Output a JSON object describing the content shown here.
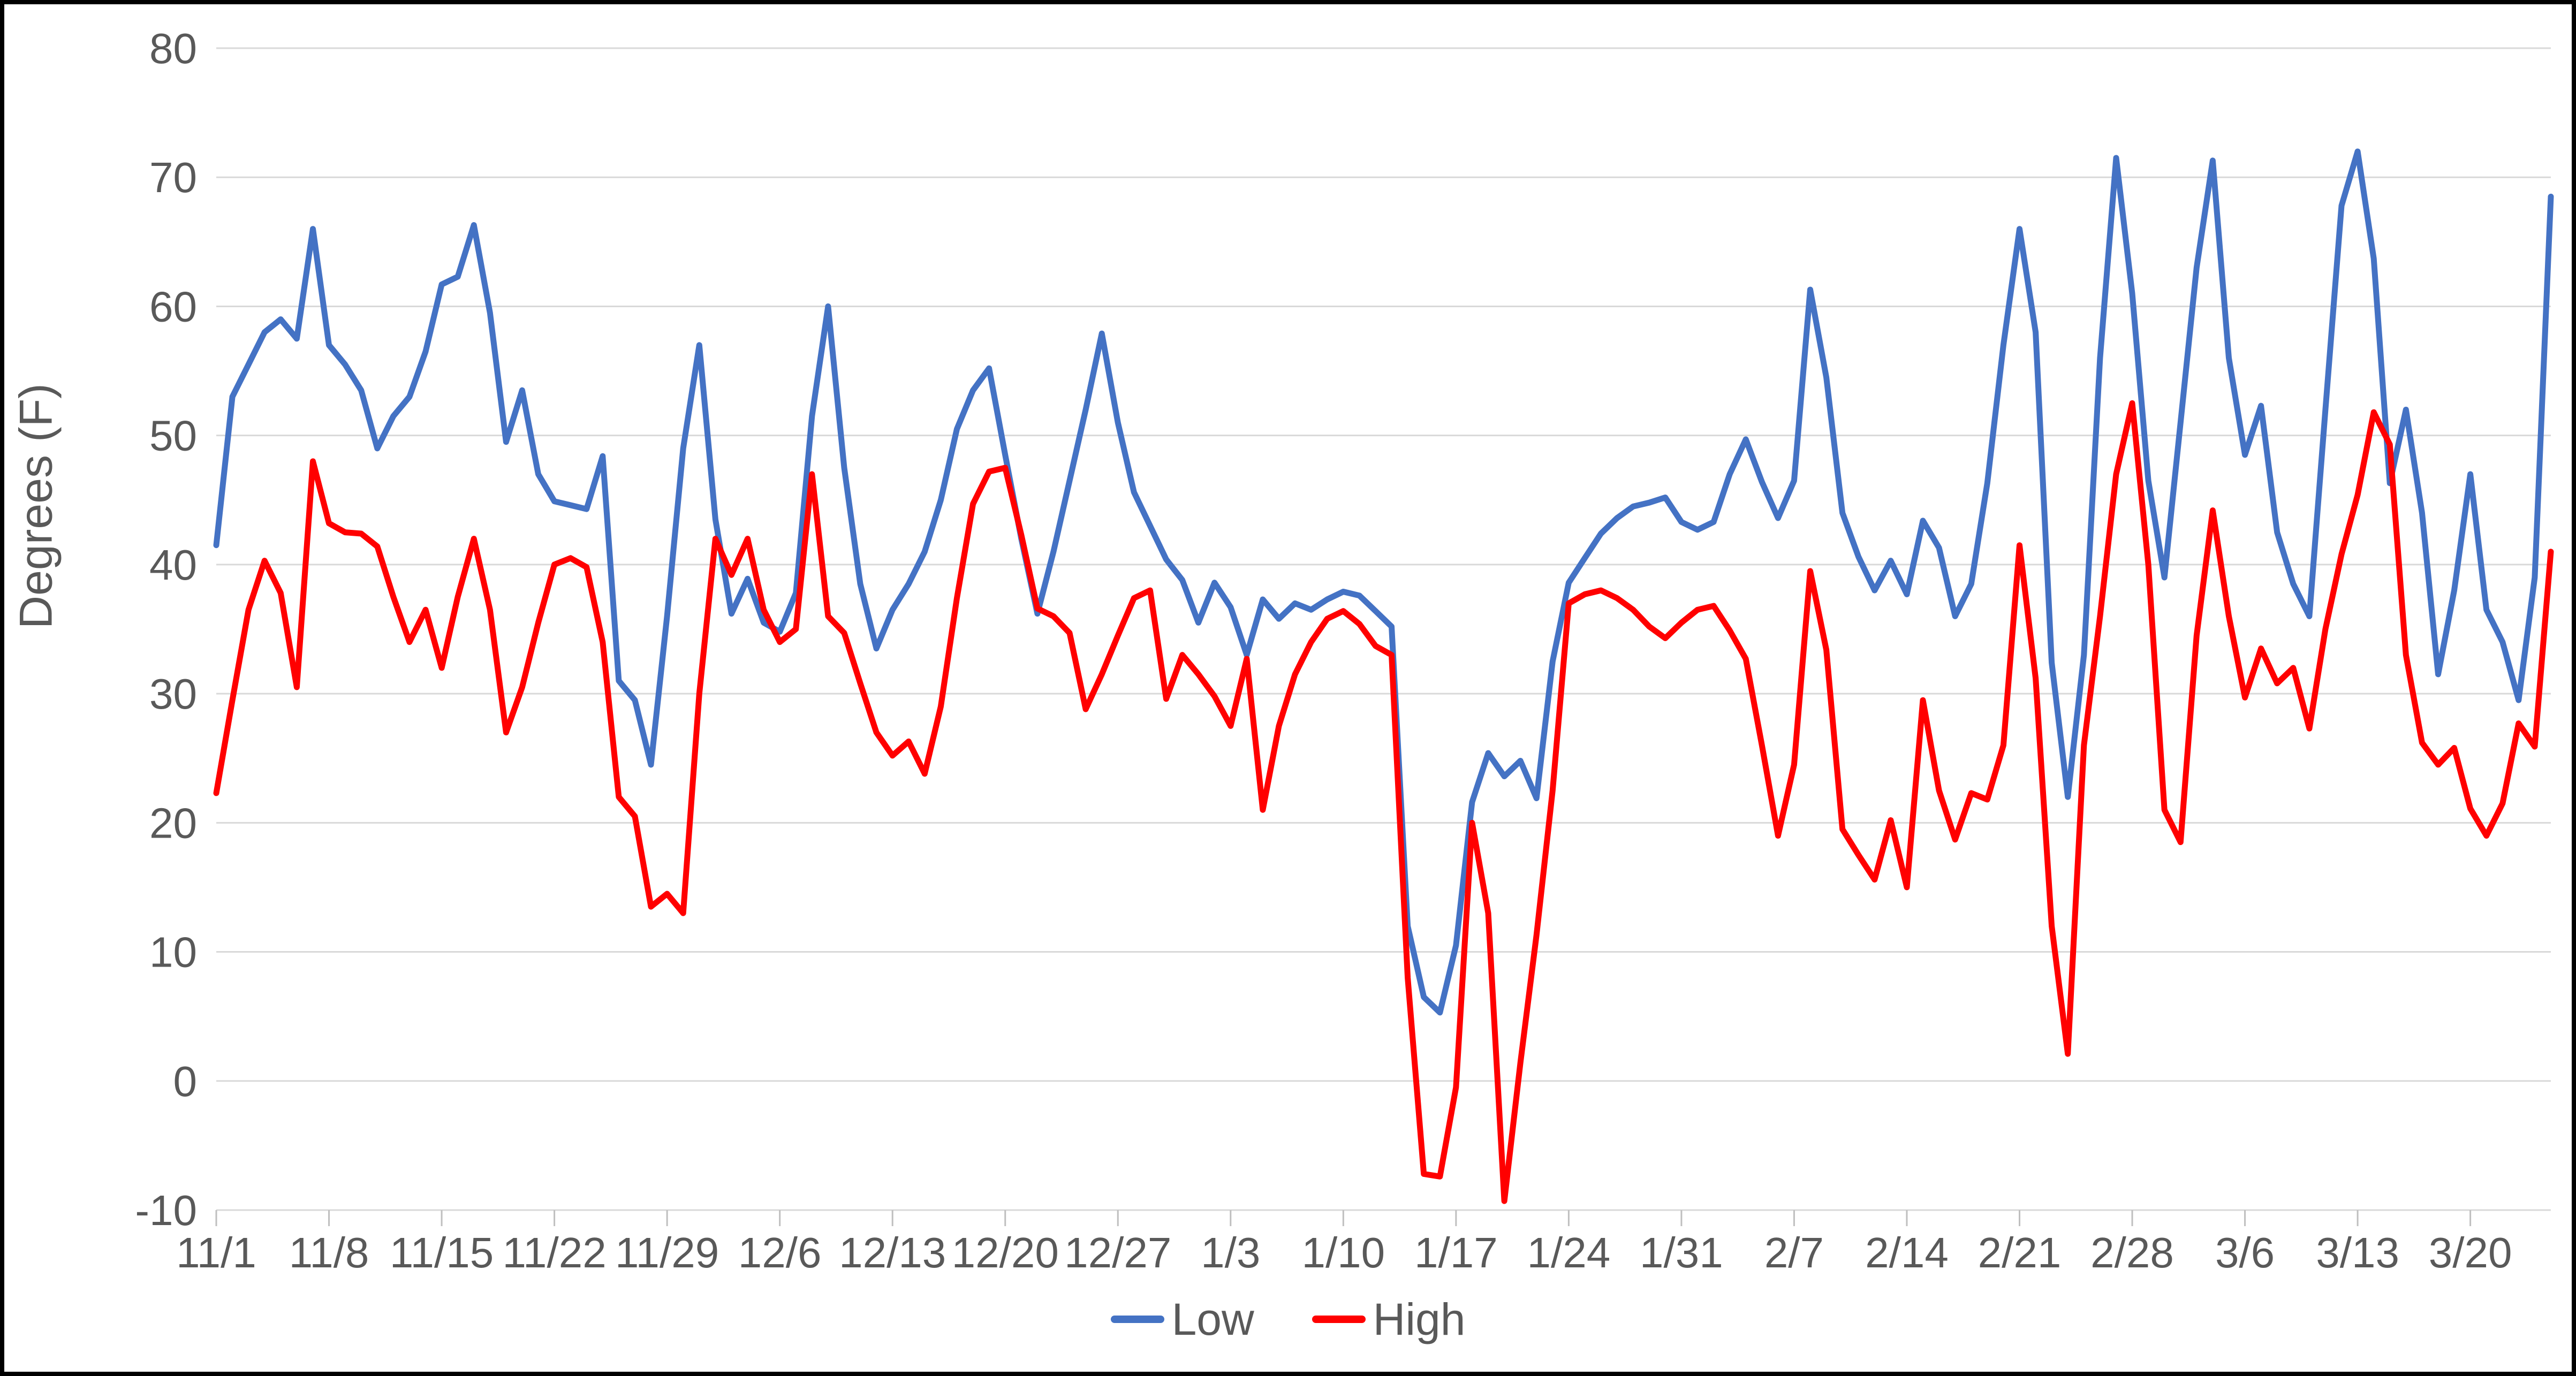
{
  "axis": {
    "y_title": "Degrees (F)"
  },
  "legend": {
    "low_label": "Low",
    "high_label": "High"
  },
  "colors": {
    "low": "#4472C4",
    "high": "#FF0000",
    "grid": "#D9D9D9",
    "tick": "#BFBFBF",
    "text": "#595959",
    "border": "#000000",
    "background": "#FFFFFF"
  },
  "chart_data": {
    "type": "line",
    "title": "",
    "xlabel": "",
    "ylabel": "Degrees (F)",
    "ylim": [
      -10,
      80
    ],
    "yticks": [
      80,
      70,
      60,
      50,
      40,
      30,
      20,
      10,
      0,
      -10
    ],
    "grid": "horizontal",
    "legend_position": "bottom-center",
    "xtick_indices": [
      0,
      7,
      14,
      21,
      28,
      35,
      42,
      49,
      56,
      63,
      70,
      77,
      84,
      91,
      98,
      105,
      112,
      119,
      126,
      133,
      140
    ],
    "xtick_labels": [
      "11/1",
      "11/8",
      "11/15",
      "11/22",
      "11/29",
      "12/6",
      "12/13",
      "12/20",
      "12/27",
      "1/3",
      "1/10",
      "1/17",
      "1/24",
      "1/31",
      "2/7",
      "2/14",
      "2/21",
      "2/28",
      "3/6",
      "3/13",
      "3/20"
    ],
    "x": [
      "11/1",
      "11/2",
      "11/3",
      "11/4",
      "11/5",
      "11/6",
      "11/7",
      "11/8",
      "11/9",
      "11/10",
      "11/11",
      "11/12",
      "11/13",
      "11/14",
      "11/15",
      "11/16",
      "11/17",
      "11/18",
      "11/19",
      "11/20",
      "11/21",
      "11/22",
      "11/23",
      "11/24",
      "11/25",
      "11/26",
      "11/27",
      "11/28",
      "11/29",
      "11/30",
      "12/1",
      "12/2",
      "12/3",
      "12/4",
      "12/5",
      "12/6",
      "12/7",
      "12/8",
      "12/9",
      "12/10",
      "12/11",
      "12/12",
      "12/13",
      "12/14",
      "12/15",
      "12/16",
      "12/17",
      "12/18",
      "12/19",
      "12/20",
      "12/21",
      "12/22",
      "12/23",
      "12/24",
      "12/25",
      "12/26",
      "12/27",
      "12/28",
      "12/29",
      "12/30",
      "12/31",
      "1/1",
      "1/2",
      "1/3",
      "1/4",
      "1/5",
      "1/6",
      "1/7",
      "1/8",
      "1/9",
      "1/10",
      "1/11",
      "1/12",
      "1/13",
      "1/14",
      "1/15",
      "1/16",
      "1/17",
      "1/18",
      "1/19",
      "1/20",
      "1/21",
      "1/22",
      "1/23",
      "1/24",
      "1/25",
      "1/26",
      "1/27",
      "1/28",
      "1/29",
      "1/30",
      "1/31",
      "2/1",
      "2/2",
      "2/3",
      "2/4",
      "2/5",
      "2/6",
      "2/7",
      "2/8",
      "2/9",
      "2/10",
      "2/11",
      "2/12",
      "2/13",
      "2/14",
      "2/15",
      "2/16",
      "2/17",
      "2/18",
      "2/19",
      "2/20",
      "2/21",
      "2/22",
      "2/23",
      "2/24",
      "2/25",
      "2/26",
      "2/27",
      "2/28",
      "2/29",
      "3/1",
      "3/2",
      "3/3",
      "3/4",
      "3/5",
      "3/6",
      "3/7",
      "3/8",
      "3/9",
      "3/10",
      "3/11",
      "3/12",
      "3/13",
      "3/14",
      "3/15",
      "3/16",
      "3/17",
      "3/18",
      "3/19",
      "3/20",
      "3/21",
      "3/22",
      "3/23",
      "3/24",
      "3/25"
    ],
    "series": [
      {
        "name": "Low",
        "color": "#4472C4",
        "values": [
          41.5,
          53,
          55.5,
          58,
          59,
          57.5,
          66,
          57,
          55.5,
          53.5,
          49,
          51.5,
          53,
          56.5,
          61.7,
          62.3,
          66.3,
          59.5,
          49.5,
          53.5,
          47,
          44.9,
          44.6,
          44.3,
          48.4,
          31,
          29.5,
          24.5,
          36,
          49,
          57,
          43.5,
          36.2,
          38.9,
          35.5,
          34.8,
          37.8,
          51.5,
          60,
          47.5,
          38.5,
          33.5,
          36.5,
          38.5,
          41,
          45,
          50.5,
          53.5,
          55.2,
          48.5,
          42,
          36.2,
          41,
          46.5,
          52,
          57.9,
          51,
          45.6,
          43,
          40.4,
          38.8,
          35.5,
          38.6,
          36.7,
          33,
          37.3,
          35.8,
          37,
          36.5,
          37.3,
          37.9,
          37.6,
          36.4,
          35.2,
          12,
          6.5,
          5.3,
          10.5,
          21.6,
          25.4,
          23.6,
          24.8,
          21.9,
          32.5,
          38.6,
          40.5,
          42.4,
          43.6,
          44.5,
          44.8,
          45.2,
          43.3,
          42.7,
          43.3,
          47,
          49.7,
          46.4,
          43.6,
          46.5,
          61.3,
          54.5,
          44,
          40.6,
          38,
          40.3,
          37.7,
          43.4,
          41.3,
          36,
          38.5,
          46.3,
          57,
          66,
          58,
          32.4,
          22,
          33,
          56,
          71.5,
          61,
          46.5,
          39,
          51,
          63,
          71.3,
          56,
          48.5,
          52.3,
          42.5,
          38.5,
          36,
          52,
          67.8,
          72,
          63.7,
          46.3,
          52,
          44,
          31.5,
          38,
          47,
          36.5,
          34,
          29.5,
          39,
          68.5
        ]
      },
      {
        "name": "High",
        "color": "#FF0000",
        "values": [
          22.3,
          29.5,
          36.5,
          40.3,
          37.8,
          30.5,
          48,
          43.2,
          42.5,
          42.4,
          41.4,
          37.5,
          34,
          36.5,
          32,
          37.5,
          42,
          36.5,
          27,
          30.5,
          35.5,
          40,
          40.5,
          39.8,
          34,
          22,
          20.5,
          13.5,
          14.5,
          13,
          30,
          42,
          39.2,
          42,
          36.5,
          34,
          35,
          47,
          36,
          34.7,
          30.8,
          27,
          25.2,
          26.3,
          23.8,
          29,
          37.4,
          44.7,
          47.2,
          47.5,
          42.3,
          36.6,
          36,
          34.7,
          28.8,
          31.5,
          34.5,
          37.4,
          38,
          29.6,
          33,
          31.5,
          29.8,
          27.5,
          32.7,
          21,
          27.5,
          31.5,
          34,
          35.8,
          36.4,
          35.4,
          33.7,
          33,
          8,
          -7.2,
          -7.4,
          -0.5,
          20,
          13,
          -9.3,
          1.4,
          11.3,
          22.5,
          37,
          37.7,
          38,
          37.4,
          36.5,
          35.2,
          34.3,
          35.5,
          36.5,
          36.8,
          34.9,
          32.7,
          26,
          19,
          24.5,
          39.5,
          33.4,
          19.5,
          17.5,
          15.6,
          20.2,
          15,
          29.5,
          22.5,
          18.7,
          22.3,
          21.8,
          26,
          41.5,
          31.2,
          12,
          2.1,
          26,
          36,
          47,
          52.5,
          40,
          21,
          18.5,
          34.5,
          44.2,
          36,
          29.7,
          33.5,
          30.8,
          32,
          27.3,
          35,
          40.8,
          45.4,
          51.8,
          49.3,
          33,
          26.2,
          24.5,
          25.8,
          21.1,
          19,
          21.5,
          27.7,
          25.9,
          41
        ]
      }
    ]
  }
}
